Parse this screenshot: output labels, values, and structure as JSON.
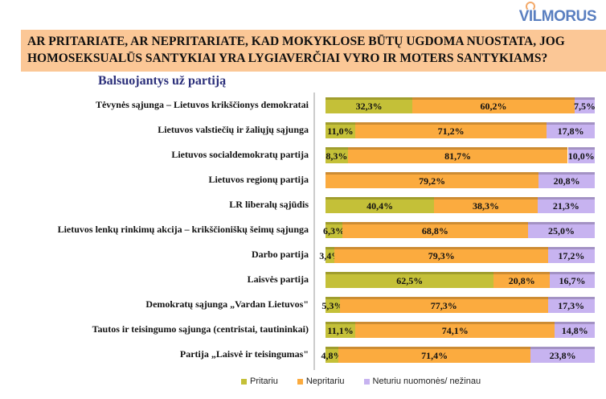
{
  "logo": "VILMORUS",
  "question": "AR PRITARIATE, AR NEPRITARIATE, KAD MOKYKLOSE BŪTŲ UGDOMA NUOSTATA, JOG HOMOSEKSUALŪS SANTYKIAI YRA LYGIAVERČIAI VYRO IR MOTERS SANTYKIAMS?",
  "subtitle": "Balsuojantys už partiją",
  "chart_data": {
    "type": "bar",
    "stacked": true,
    "orientation": "horizontal",
    "categories": [
      "Tėvynės sąjunga – Lietuvos krikščionys demokratai",
      "Lietuvos valstiečių ir žaliųjų sąjunga",
      "Lietuvos socialdemokratų partija",
      "Lietuvos regionų partija",
      "LR liberalų sąjūdis",
      "Lietuvos lenkų rinkimų akcija – krikščioniškų šeimų sąjunga",
      "Darbo partija",
      "Laisvės partija",
      "Demokratų sąjunga „Vardan Lietuvos\"",
      "Tautos ir teisingumo sąjunga (centristai, tautininkai)",
      "Partija „Laisvė ir teisingumas\""
    ],
    "series": [
      {
        "name": "Pritariu",
        "color": "#c4c038",
        "values": [
          32.3,
          11.0,
          8.3,
          0,
          40.4,
          6.3,
          3.4,
          62.5,
          5.3,
          11.1,
          4.8
        ],
        "labels": [
          "32,3%",
          "11,0%",
          "8,3%",
          "",
          "40,4%",
          "6,3%",
          "3,4%",
          "62,5%",
          "5,3%",
          "11,1%",
          "4,8%"
        ]
      },
      {
        "name": "Nepritariu",
        "color": "#fbab3f",
        "values": [
          60.2,
          71.2,
          81.7,
          79.2,
          38.3,
          68.8,
          79.3,
          20.8,
          77.3,
          74.1,
          71.4
        ],
        "labels": [
          "60,2%",
          "71,2%",
          "81,7%",
          "79,2%",
          "38,3%",
          "68,8%",
          "79,3%",
          "20,8%",
          "77,3%",
          "74,1%",
          "71,4%"
        ]
      },
      {
        "name": "Neturiu nuomonės/ nežinau",
        "color": "#c7b3f0",
        "values": [
          7.5,
          17.8,
          10.0,
          20.8,
          21.3,
          25.0,
          17.2,
          16.7,
          17.3,
          14.8,
          23.8
        ],
        "labels": [
          "7,5%",
          "17,8%",
          "10,0%",
          "20,8%",
          "21,3%",
          "25,0%",
          "17,2%",
          "16,7%",
          "17,3%",
          "14,8%",
          "23,8%"
        ]
      }
    ],
    "xlim": [
      0,
      100
    ],
    "legend": "bottom"
  }
}
